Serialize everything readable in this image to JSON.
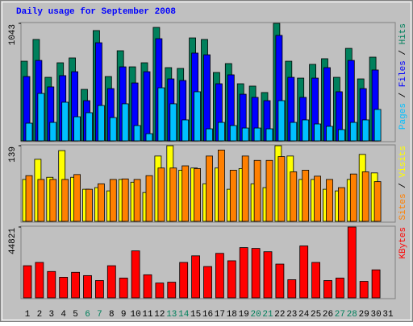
{
  "chart_data": [
    {
      "type": "bar",
      "title": "Daily usage for September 2008",
      "ylim": [
        0,
        1043
      ],
      "yticks": [
        1043
      ],
      "legend_separator": " / ",
      "series": [
        {
          "name": "Hits",
          "color": "#00805c",
          "values": [
            707,
            900,
            564,
            693,
            736,
            457,
            979,
            571,
            800,
            657,
            693,
            1007,
            650,
            643,
            914,
            900,
            607,
            686,
            507,
            486,
            429,
            1043,
            707,
            557,
            679,
            729,
            564,
            821,
            550,
            743,
            null
          ]
        },
        {
          "name": "Files",
          "color": "#0000ff",
          "values": [
            571,
            714,
            479,
            579,
            614,
            357,
            871,
            464,
            657,
            514,
            614,
            907,
            550,
            536,
            779,
            764,
            507,
            586,
            414,
            386,
            357,
            936,
            564,
            386,
            557,
            650,
            436,
            714,
            464,
            629,
            null
          ]
        },
        {
          "name": "Pages",
          "color": "#00c0ff",
          "values": [
            157,
            421,
            164,
            343,
            214,
            250,
            314,
            207,
            329,
            136,
            64,
            471,
            329,
            186,
            436,
            107,
            164,
            136,
            114,
            114,
            107,
            357,
            164,
            186,
            150,
            129,
            100,
            164,
            186,
            279,
            null
          ]
        }
      ]
    },
    {
      "type": "bar",
      "ylim": [
        0,
        139
      ],
      "yticks": [
        139
      ],
      "legend_separator": " / ",
      "series": [
        {
          "name": "Visits",
          "color": "#ffff00",
          "values": [
            77,
            114,
            81,
            130,
            81,
            59,
            62,
            56,
            77,
            72,
            53,
            120,
            139,
            94,
            98,
            69,
            98,
            59,
            97,
            69,
            62,
            139,
            120,
            77,
            77,
            59,
            56,
            77,
            123,
            89,
            null
          ]
        },
        {
          "name": "Sites",
          "color": "#ff8000",
          "values": [
            84,
            77,
            77,
            77,
            86,
            59,
            69,
            77,
            78,
            77,
            84,
            98,
            98,
            102,
            97,
            120,
            131,
            94,
            120,
            112,
            112,
            119,
            91,
            94,
            83,
            77,
            62,
            87,
            91,
            73,
            null
          ]
        }
      ]
    },
    {
      "type": "bar",
      "ylim": [
        0,
        44821
      ],
      "yticks": [
        44821
      ],
      "categories": [
        "1",
        "2",
        "3",
        "4",
        "5",
        "6",
        "7",
        "8",
        "9",
        "10",
        "11",
        "12",
        "13",
        "14",
        "15",
        "16",
        "17",
        "18",
        "19",
        "20",
        "21",
        "22",
        "23",
        "24",
        "25",
        "26",
        "27",
        "28",
        "29",
        "30",
        "31"
      ],
      "category_colors": [
        "#000000",
        "#000000",
        "#000000",
        "#000000",
        "#000000",
        "#00805c",
        "#00805c",
        "#000000",
        "#000000",
        "#000000",
        "#000000",
        "#000000",
        "#00805c",
        "#00805c",
        "#000000",
        "#000000",
        "#000000",
        "#000000",
        "#000000",
        "#00805c",
        "#00805c",
        "#000000",
        "#000000",
        "#000000",
        "#000000",
        "#000000",
        "#00805c",
        "#00805c",
        "#000000",
        "#000000",
        "#000000"
      ],
      "series": [
        {
          "name": "KBytes",
          "color": "#ff0000",
          "values": [
            20327,
            22410,
            16677,
            13030,
            16156,
            14072,
            10945,
            20327,
            12508,
            29707,
            14593,
            9381,
            9903,
            22410,
            26580,
            19805,
            28144,
            23453,
            31792,
            31271,
            29186,
            21368,
            11466,
            32834,
            22410,
            10945,
            12508,
            44821,
            10424,
            17720,
            null
          ]
        }
      ]
    }
  ]
}
